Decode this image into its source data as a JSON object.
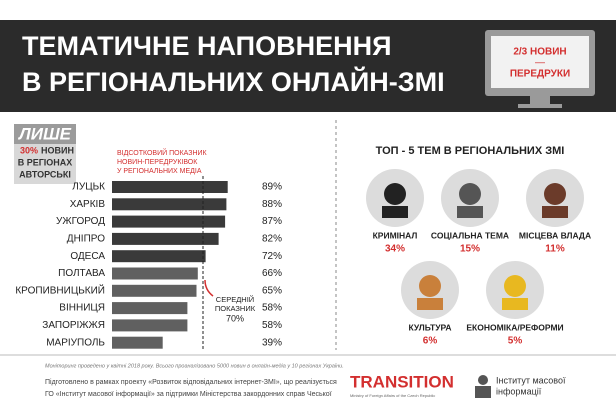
{
  "header": {
    "title_lines": [
      "ТЕМАТИЧНЕ НАПОВНЕННЯ",
      "В РЕГІОНАЛЬНИХ ОНЛАЙН-ЗМІ"
    ],
    "screen_lines": [
      "2/3 НОВИН",
      "—",
      "ПЕРЕДРУКИ"
    ]
  },
  "sidebar": {
    "only": "ЛИШЕ",
    "pct": "30%",
    "lines": [
      "НОВИН",
      "В РЕГІОНАХ",
      "АВТОРСЬКІ"
    ]
  },
  "chart_data": {
    "type": "bar",
    "subtitle_lines": [
      "ВІДСОТКОВИЙ ПОКАЗНИК",
      "НОВИН-ПЕРЕДРУКІВОК",
      "У РЕГІОНАЛЬНИХ МЕДІА"
    ],
    "categories": [
      "ЛУЦЬК",
      "ХАРКІВ",
      "УЖГОРОД",
      "ДНІПРО",
      "ОДЕСА",
      "ПОЛТАВА",
      "КРОПИВНИЦЬКИЙ",
      "ВІННИЦЯ",
      "ЗАПОРІЖЖЯ",
      "МАРІУПОЛЬ"
    ],
    "values": [
      89,
      88,
      87,
      82,
      72,
      66,
      65,
      58,
      58,
      39
    ],
    "value_labels": [
      "89%",
      "88%",
      "87%",
      "82%",
      "72%",
      "66%",
      "65%",
      "58%",
      "58%",
      "39%"
    ],
    "colors": [
      "#3a3a3a",
      "#3a3a3a",
      "#3a3a3a",
      "#3a3a3a",
      "#3a3a3a",
      "#606060",
      "#606060",
      "#606060",
      "#606060",
      "#606060"
    ],
    "average": {
      "label_lines": [
        "СЕРЕДНІЙ",
        "ПОКАЗНИК"
      ],
      "value": 70,
      "value_label": "70%"
    }
  },
  "top5": {
    "title": "ТОП - 5 ТЕМ В РЕГІОНАЛЬНИХ ЗМІ",
    "items": [
      {
        "label": "КРИМІНАЛ",
        "pct": "34%"
      },
      {
        "label": "СОЦІАЛЬНА ТЕМА",
        "pct": "15%"
      },
      {
        "label": "МІСЦЕВА ВЛАДА",
        "pct": "11%"
      },
      {
        "label": "КУЛЬТУРА",
        "pct": "6%"
      },
      {
        "label": "ЕКОНОМІКА/РЕФОРМИ",
        "pct": "5%"
      }
    ]
  },
  "footer": {
    "note": "Моніторинг проведено у квітні 2018 року. Всього проаналізовано 5000 новин в онлайн-медіа у 10 регіонах України.",
    "lines": [
      "Підготовлено в рамках проекту «Розвиток відповідальних інтернет-ЗМІ», що реалізується",
      "ГО «Інститут масової інформації» за підтримки Міністерства закордонних справ Чеської"
    ],
    "transition": "TRANSITION",
    "ministry": "Ministry of Foreign Affairs of the Czech Republic",
    "imi_lines": [
      "Інститут масової",
      "інформації"
    ]
  }
}
